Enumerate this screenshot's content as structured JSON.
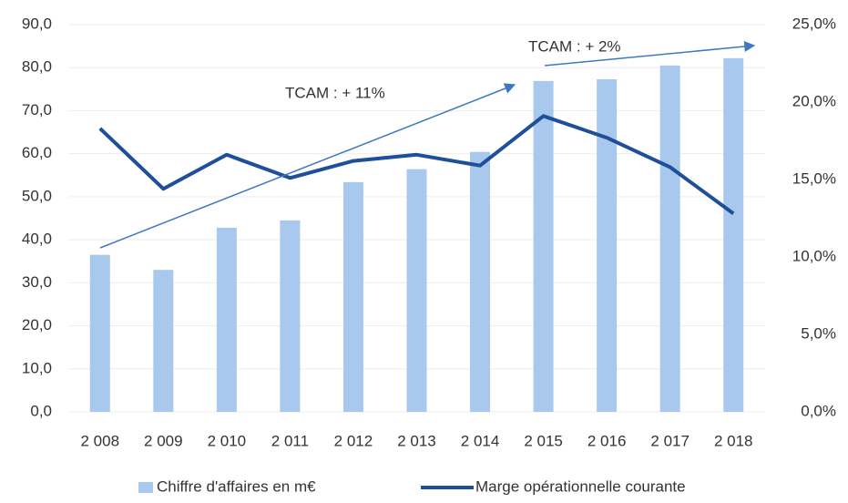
{
  "chart_data": {
    "type": "bar",
    "categories": [
      "2 008",
      "2 009",
      "2 010",
      "2 011",
      "2 012",
      "2 013",
      "2 014",
      "2 015",
      "2 016",
      "2 017",
      "2 018"
    ],
    "series": [
      {
        "name": "Chiffre d'affaires en m€",
        "type": "bar",
        "color": "#a9c8ee",
        "values": [
          36.5,
          33,
          42.8,
          44.5,
          53.4,
          56.4,
          60.4,
          76.9,
          77.3,
          80.5,
          82.2
        ]
      },
      {
        "name": "Marge opérationnelle courante",
        "type": "line",
        "axis": "y2",
        "color": "#1f4e9a",
        "values": [
          18.3,
          14.4,
          16.6,
          15.1,
          16.2,
          16.6,
          15.9,
          19.1,
          17.7,
          15.8,
          12.8
        ]
      }
    ],
    "ylim": [
      0,
      90
    ],
    "yticks": [
      {
        "value": 0,
        "label": "0,0"
      },
      {
        "value": 10,
        "label": "10,0"
      },
      {
        "value": 20,
        "label": "20,0"
      },
      {
        "value": 30,
        "label": "30,0"
      },
      {
        "value": 40,
        "label": "40,0"
      },
      {
        "value": 50,
        "label": "50,0"
      },
      {
        "value": 60,
        "label": "60,0"
      },
      {
        "value": 70,
        "label": "70,0"
      },
      {
        "value": 80,
        "label": "80,0"
      },
      {
        "value": 90,
        "label": "90,0"
      }
    ],
    "y2lim": [
      0,
      25
    ],
    "y2ticks": [
      {
        "value": 0,
        "label": "0,0%"
      },
      {
        "value": 5,
        "label": "5,0%"
      },
      {
        "value": 10,
        "label": "10,0%"
      },
      {
        "value": 15,
        "label": "15,0%"
      },
      {
        "value": 20,
        "label": "20,0%"
      },
      {
        "value": 25,
        "label": "25,0%"
      }
    ],
    "annotations": [
      "TCAM : + 11%",
      "TCAM : + 2%"
    ],
    "legend": "bottom"
  }
}
